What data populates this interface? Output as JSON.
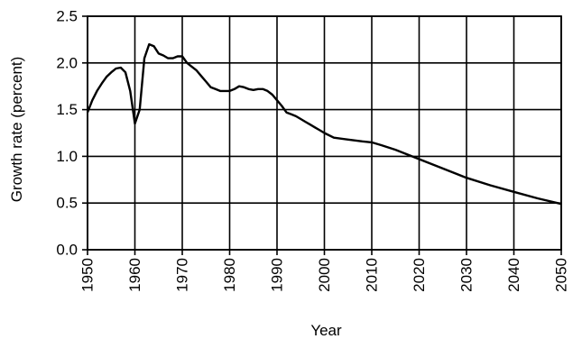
{
  "chart_data": {
    "type": "line",
    "title": "",
    "xlabel": "Year",
    "ylabel": "Growth rate (percent)",
    "xlim": [
      1950,
      2050
    ],
    "ylim": [
      0,
      2.5
    ],
    "x_ticks": [
      "1950",
      "1960",
      "1970",
      "1980",
      "1990",
      "2000",
      "2010",
      "2020",
      "2030",
      "2040",
      "2050"
    ],
    "y_ticks": [
      "0.0",
      "0.5",
      "1.0",
      "1.5",
      "2.0",
      "2.5"
    ],
    "grid": true,
    "legend": "none",
    "series": [
      {
        "color": "#000000",
        "points": [
          [
            1950,
            1.47
          ],
          [
            1951,
            1.6
          ],
          [
            1952,
            1.7
          ],
          [
            1953,
            1.78
          ],
          [
            1954,
            1.85
          ],
          [
            1955,
            1.9
          ],
          [
            1956,
            1.94
          ],
          [
            1957,
            1.95
          ],
          [
            1958,
            1.9
          ],
          [
            1959,
            1.7
          ],
          [
            1960,
            1.35
          ],
          [
            1961,
            1.5
          ],
          [
            1962,
            2.05
          ],
          [
            1963,
            2.2
          ],
          [
            1964,
            2.18
          ],
          [
            1965,
            2.1
          ],
          [
            1966,
            2.08
          ],
          [
            1967,
            2.05
          ],
          [
            1968,
            2.05
          ],
          [
            1969,
            2.07
          ],
          [
            1970,
            2.07
          ],
          [
            1971,
            2.0
          ],
          [
            1972,
            1.96
          ],
          [
            1973,
            1.92
          ],
          [
            1974,
            1.86
          ],
          [
            1975,
            1.8
          ],
          [
            1976,
            1.74
          ],
          [
            1977,
            1.72
          ],
          [
            1978,
            1.7
          ],
          [
            1979,
            1.7
          ],
          [
            1980,
            1.7
          ],
          [
            1981,
            1.72
          ],
          [
            1982,
            1.75
          ],
          [
            1983,
            1.74
          ],
          [
            1984,
            1.72
          ],
          [
            1985,
            1.71
          ],
          [
            1986,
            1.72
          ],
          [
            1987,
            1.72
          ],
          [
            1988,
            1.7
          ],
          [
            1989,
            1.66
          ],
          [
            1990,
            1.6
          ],
          [
            1991,
            1.54
          ],
          [
            1992,
            1.47
          ],
          [
            1993,
            1.45
          ],
          [
            1994,
            1.43
          ],
          [
            1995,
            1.4
          ],
          [
            1996,
            1.37
          ],
          [
            1997,
            1.34
          ],
          [
            1998,
            1.31
          ],
          [
            1999,
            1.28
          ],
          [
            2000,
            1.25
          ],
          [
            2002,
            1.2
          ],
          [
            2005,
            1.18
          ],
          [
            2008,
            1.16
          ],
          [
            2010,
            1.15
          ],
          [
            2012,
            1.12
          ],
          [
            2015,
            1.07
          ],
          [
            2020,
            0.97
          ],
          [
            2025,
            0.87
          ],
          [
            2030,
            0.77
          ],
          [
            2035,
            0.69
          ],
          [
            2040,
            0.62
          ],
          [
            2045,
            0.55
          ],
          [
            2050,
            0.49
          ]
        ]
      }
    ]
  }
}
